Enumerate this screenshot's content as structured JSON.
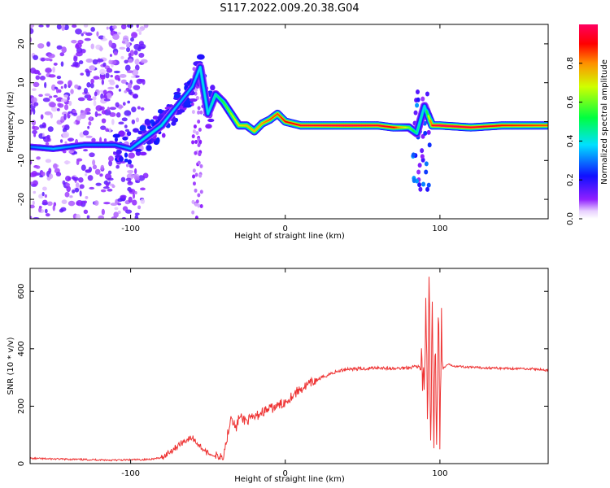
{
  "figure": {
    "title": "S117.2022.009.20.38.G04"
  },
  "chart_data": [
    {
      "type": "heatmap",
      "title": "S117.2022.009.20.38.G04",
      "xlabel": "Height of straight line (km)",
      "ylabel": "Frequency (Hz)",
      "xlim": [
        -165,
        170
      ],
      "ylim": [
        -25,
        25
      ],
      "xticks": [
        -100,
        0,
        100
      ],
      "yticks": [
        -20,
        -10,
        0,
        10,
        20
      ],
      "colorbar": {
        "label": "Normalized spectral amplitude",
        "range": [
          0.0,
          1.0
        ],
        "ticks": [
          0.0,
          0.2,
          0.4,
          0.6,
          0.8
        ],
        "colormap": "rainbow (purple to red)",
        "stops": [
          "#ffffff",
          "#8000ff",
          "#0000ff",
          "#00ffff",
          "#00ff00",
          "#ffff00",
          "#ff8000",
          "#ff0000",
          "#ff0080"
        ]
      },
      "ridge": {
        "x": [
          -165,
          -150,
          -130,
          -110,
          -100,
          -90,
          -80,
          -70,
          -60,
          -55,
          -50,
          -45,
          -40,
          -35,
          -30,
          -25,
          -20,
          -15,
          -10,
          -5,
          0,
          5,
          10,
          20,
          40,
          60,
          70,
          80,
          85,
          90,
          95,
          100,
          120,
          140,
          170
        ],
        "y": [
          -6.5,
          -7,
          -6,
          -6,
          -7,
          -4,
          -1,
          4,
          9,
          14,
          2,
          7,
          5,
          2,
          -1,
          -1,
          -2.5,
          -0.5,
          0.5,
          2,
          0,
          -0.5,
          -1,
          -1,
          -1,
          -1,
          -1.5,
          -1.5,
          -3,
          4,
          -1,
          -1,
          -1.5,
          -1,
          -1
        ],
        "amplitude": [
          0.3,
          0.35,
          0.3,
          0.3,
          0.35,
          0.4,
          0.4,
          0.35,
          0.35,
          0.4,
          0.4,
          0.45,
          0.55,
          0.65,
          0.7,
          0.75,
          0.75,
          0.8,
          0.85,
          0.85,
          0.9,
          0.9,
          0.95,
          0.95,
          1.0,
          0.95,
          0.9,
          0.6,
          0.45,
          0.4,
          0.95,
          1.0,
          0.95,
          0.9,
          0.85
        ]
      },
      "noise_region_x": [
        -165,
        -90
      ],
      "grid": false,
      "legend": "none"
    },
    {
      "type": "line",
      "xlabel": "Height of straight line (km)",
      "ylabel": "SNR (10 * v/v)",
      "xlim": [
        -165,
        170
      ],
      "ylim": [
        0,
        680
      ],
      "xticks": [
        -100,
        0,
        100
      ],
      "yticks": [
        0,
        200,
        400,
        600
      ],
      "color": "#ee3333",
      "series": [
        {
          "x": [
            -165,
            -140,
            -110,
            -90,
            -80,
            -75,
            -70,
            -65,
            -60,
            -55,
            -50,
            -45,
            -40,
            -38,
            -35,
            -32,
            -30,
            -25,
            -20,
            -15,
            -10,
            -5,
            0,
            5,
            10,
            20,
            30,
            40,
            50,
            60,
            70,
            80,
            85,
            88,
            90,
            91,
            92,
            93,
            94,
            95,
            96,
            97,
            98,
            99,
            100,
            101,
            102,
            105,
            110,
            120,
            140,
            160,
            170
          ],
          "y": [
            18,
            15,
            12,
            14,
            20,
            40,
            60,
            80,
            90,
            60,
            35,
            25,
            30,
            80,
            170,
            120,
            160,
            150,
            160,
            180,
            190,
            200,
            215,
            240,
            260,
            290,
            315,
            330,
            330,
            335,
            330,
            335,
            340,
            330,
            250,
            580,
            100,
            640,
            60,
            520,
            40,
            450,
            70,
            600,
            80,
            480,
            330,
            345,
            340,
            335,
            332,
            330,
            325
          ]
        }
      ],
      "grid": false,
      "legend": "none"
    }
  ]
}
